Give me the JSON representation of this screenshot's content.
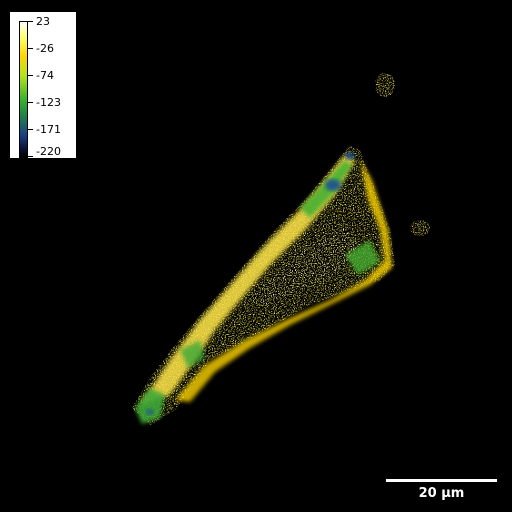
{
  "colorbar": {
    "labels": [
      "23",
      "-26",
      "-74",
      "-123",
      "-171",
      "-220"
    ],
    "max": 23,
    "min": -220,
    "colors": [
      "#ffffff",
      "#ffff66",
      "#ffd600",
      "#b4e21a",
      "#35b02e",
      "#1f7f4a",
      "#1b3f86",
      "#0b1230",
      "#000000"
    ]
  },
  "scalebar": {
    "label": "20 µm"
  },
  "image": {
    "background": "#000000",
    "colormap": "white-yellow-green-blue-black"
  }
}
